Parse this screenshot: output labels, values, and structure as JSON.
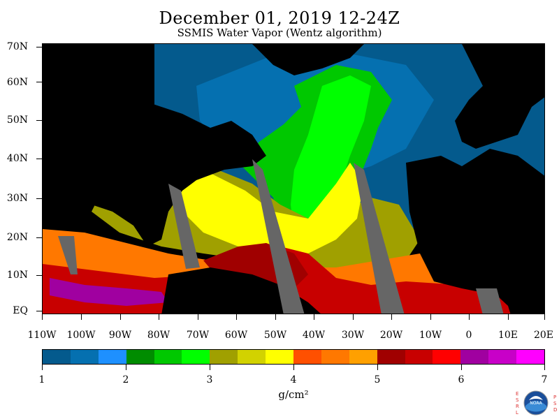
{
  "title": "December 01, 2019 12-24Z",
  "subtitle": "SSMIS Water Vapor (Wentz algorithm)",
  "map": {
    "region": "North Atlantic",
    "land_color": "#000000",
    "no_data_color": "#666666",
    "lat_labels": [
      "70N",
      "60N",
      "50N",
      "40N",
      "30N",
      "20N",
      "10N",
      "EQ"
    ],
    "lon_labels": [
      "110W",
      "100W",
      "90W",
      "80W",
      "70W",
      "60W",
      "50W",
      "40W",
      "30W",
      "20W",
      "10W",
      "0",
      "10E",
      "20E"
    ]
  },
  "colorbar": {
    "colors": [
      "#045a8d",
      "#0570b0",
      "#1e90ff",
      "#008c00",
      "#00c800",
      "#00ff00",
      "#a0a000",
      "#d2d200",
      "#ffff00",
      "#ff5000",
      "#ff7800",
      "#ffa000",
      "#a00000",
      "#c80000",
      "#ff0000",
      "#a000a0",
      "#c800c8",
      "#ff00ff"
    ],
    "labels": [
      "1",
      "2",
      "3",
      "4",
      "5",
      "6",
      "7"
    ],
    "units": "g/cm²"
  },
  "logo": {
    "letters_left": [
      "E",
      "S",
      "R",
      "L"
    ],
    "letters_right": [
      "P",
      "S",
      "D"
    ],
    "emblem": "NOAA"
  }
}
